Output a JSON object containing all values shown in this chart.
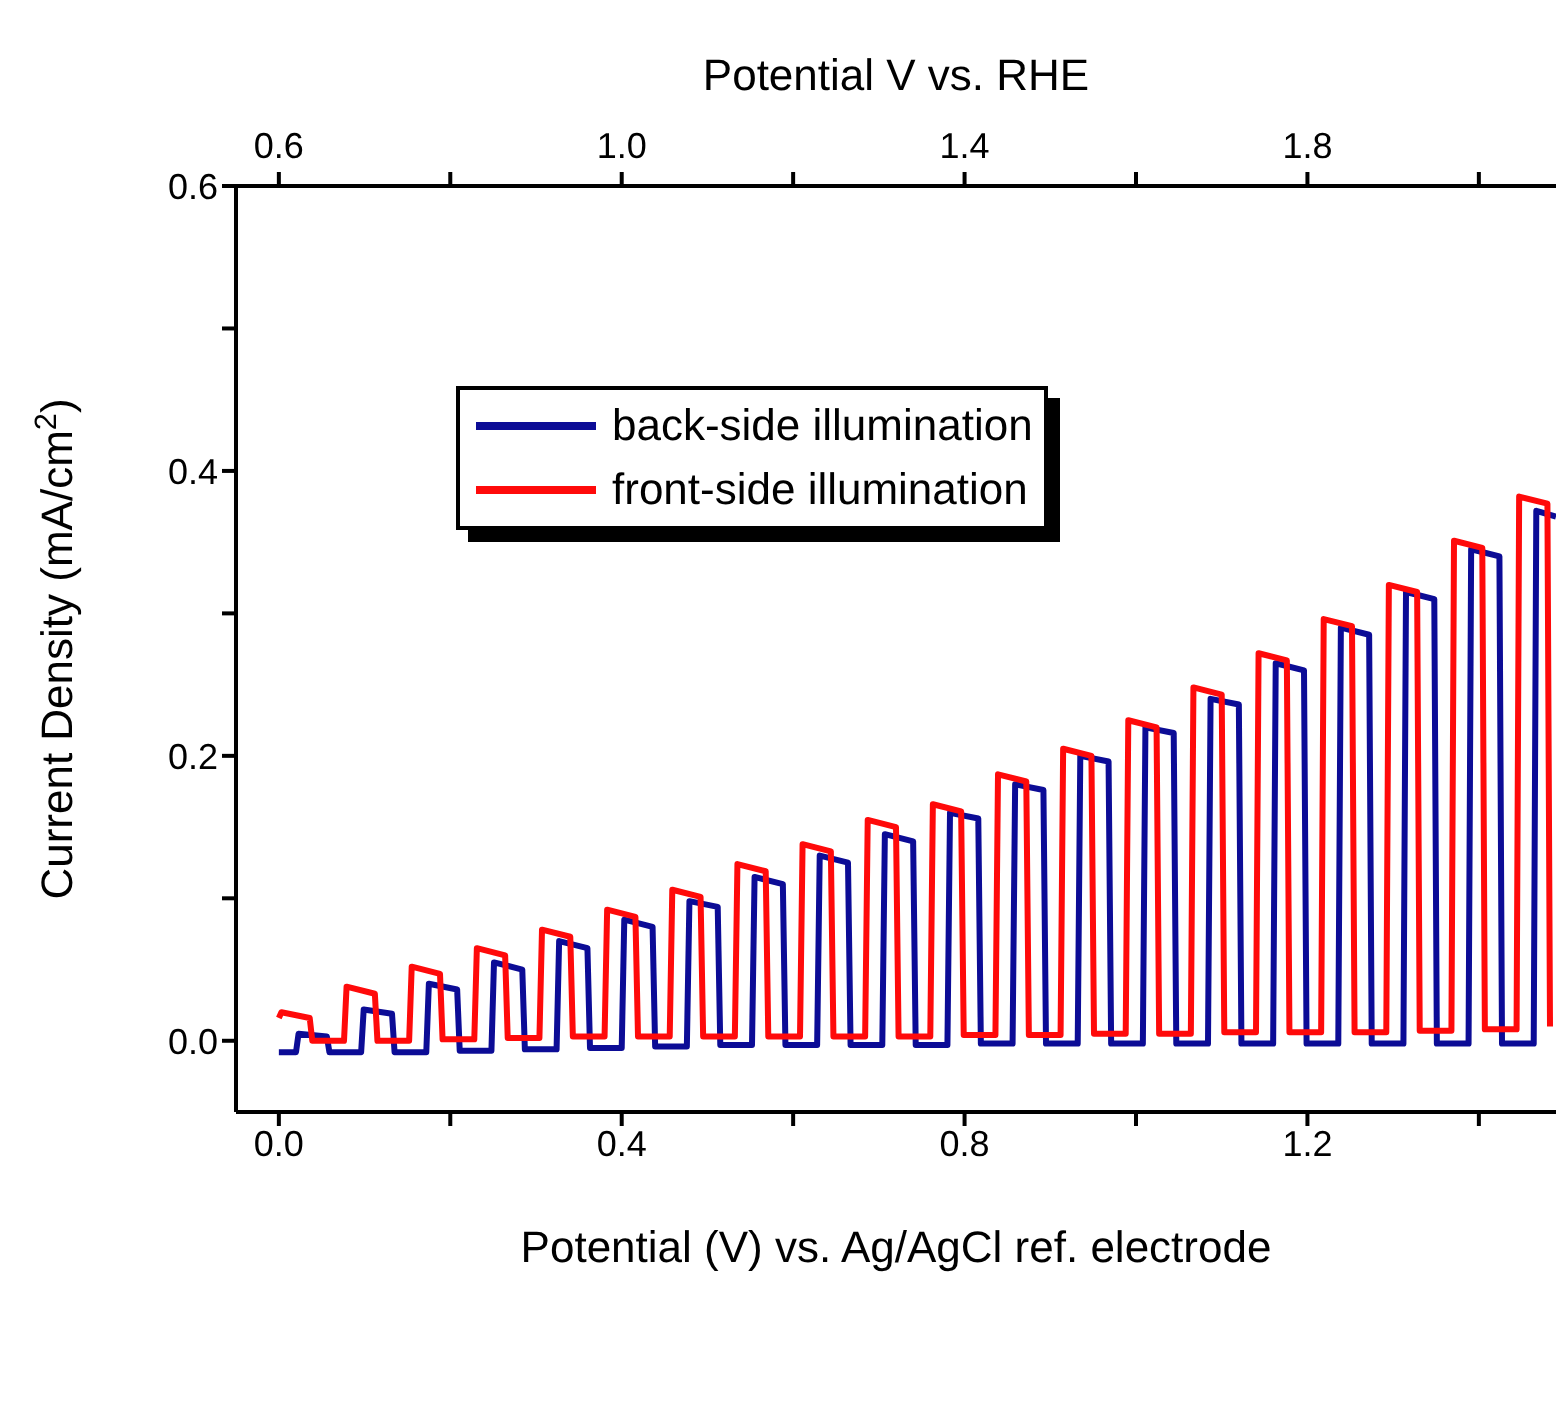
{
  "chart_data": {
    "type": "line",
    "xlabel": "Potential (V) vs. Ag/AgCl ref. electrode",
    "x2label": "Potential V vs. RHE",
    "ylabel": "Current Density (mA/cm$^{2}$)",
    "xlim": [
      -0.05,
      1.49
    ],
    "xticks": [
      {
        "value": 0,
        "label": "0.0"
      },
      {
        "value": 0.2,
        "label": null
      },
      {
        "value": 0.4,
        "label": "0.4"
      },
      {
        "value": 0.6,
        "label": null
      },
      {
        "value": 0.8,
        "label": "0.8"
      },
      {
        "value": 1.0,
        "label": null
      },
      {
        "value": 1.2,
        "label": "1.2"
      },
      {
        "value": 1.4,
        "label": null
      }
    ],
    "x2lim": [
      0.55,
      2.09
    ],
    "x2ticks": [
      0.6,
      {
        "value": 0.8,
        "label": null
      },
      {
        "value": 1.0,
        "label": "1.0"
      },
      {
        "value": 1.2,
        "label": null
      },
      1.4,
      {
        "value": 1.6,
        "label": null
      },
      1.8,
      {
        "value": 2.0,
        "label": null
      }
    ],
    "ylim": [
      -0.05,
      0.6
    ],
    "yticks": [
      {
        "value": 0,
        "label": "0.0"
      },
      {
        "value": 0.1,
        "label": null
      },
      0.2,
      {
        "value": 0.3,
        "label": null
      },
      0.4,
      {
        "value": 0.5,
        "label": null
      },
      0.6
    ],
    "legend": "top left",
    "marker": "none",
    "line_style": "solid",
    "series": [
      {
        "name": "back-side illumination",
        "color": "#0c0c96",
        "x": [
          0,
          0.02,
          0.023,
          0.056,
          0.059,
          0.096,
          0.099,
          0.132,
          0.135,
          0.172,
          0.175,
          0.208,
          0.211,
          0.248,
          0.251,
          0.284,
          0.287,
          0.324,
          0.327,
          0.36,
          0.363,
          0.4,
          0.403,
          0.436,
          0.439,
          0.476,
          0.479,
          0.512,
          0.515,
          0.552,
          0.555,
          0.588,
          0.591,
          0.628,
          0.631,
          0.664,
          0.667,
          0.704,
          0.707,
          0.74,
          0.743,
          0.78,
          0.783,
          0.816,
          0.819,
          0.856,
          0.859,
          0.892,
          0.895,
          0.932,
          0.935,
          0.968,
          0.971,
          1.008,
          1.011,
          1.044,
          1.047,
          1.084,
          1.087,
          1.12,
          1.123,
          1.16,
          1.163,
          1.196,
          1.199,
          1.236,
          1.239,
          1.272,
          1.275,
          1.312,
          1.315,
          1.348,
          1.351,
          1.388,
          1.391,
          1.424,
          1.427,
          1.464,
          1.467,
          1.49
        ],
        "values": [
          -0.008,
          -0.008,
          0.005,
          0.003,
          -0.008,
          -0.008,
          0.022,
          0.019,
          -0.008,
          -0.008,
          0.04,
          0.036,
          -0.007,
          -0.007,
          0.055,
          0.05,
          -0.006,
          -0.006,
          0.07,
          0.065,
          -0.005,
          -0.005,
          0.085,
          0.08,
          -0.004,
          -0.004,
          0.098,
          0.094,
          -0.003,
          -0.003,
          0.115,
          0.11,
          -0.003,
          -0.003,
          0.13,
          0.125,
          -0.003,
          -0.003,
          0.145,
          0.14,
          -0.003,
          -0.003,
          0.16,
          0.156,
          -0.002,
          -0.002,
          0.18,
          0.176,
          -0.002,
          -0.002,
          0.2,
          0.196,
          -0.002,
          -0.002,
          0.22,
          0.216,
          -0.002,
          -0.002,
          0.24,
          0.236,
          -0.002,
          -0.002,
          0.265,
          0.26,
          -0.002,
          -0.002,
          0.29,
          0.285,
          -0.002,
          -0.002,
          0.315,
          0.31,
          -0.002,
          -0.002,
          0.345,
          0.34,
          -0.002,
          -0.002,
          0.372,
          0.368
        ]
      },
      {
        "name": "front-side illumination",
        "color": "#ff0a0a",
        "x": [
          0,
          0.003,
          0.036,
          0.039,
          0.076,
          0.079,
          0.112,
          0.115,
          0.152,
          0.155,
          0.188,
          0.191,
          0.228,
          0.231,
          0.264,
          0.267,
          0.304,
          0.307,
          0.34,
          0.343,
          0.38,
          0.383,
          0.416,
          0.419,
          0.456,
          0.459,
          0.492,
          0.495,
          0.532,
          0.535,
          0.568,
          0.571,
          0.608,
          0.611,
          0.644,
          0.647,
          0.684,
          0.687,
          0.72,
          0.723,
          0.76,
          0.763,
          0.796,
          0.799,
          0.836,
          0.839,
          0.872,
          0.875,
          0.912,
          0.915,
          0.948,
          0.951,
          0.988,
          0.991,
          1.024,
          1.027,
          1.064,
          1.067,
          1.1,
          1.103,
          1.14,
          1.143,
          1.176,
          1.179,
          1.216,
          1.219,
          1.252,
          1.255,
          1.292,
          1.295,
          1.328,
          1.331,
          1.368,
          1.371,
          1.404,
          1.407,
          1.444,
          1.447,
          1.48,
          1.483
        ],
        "values": [
          0.016,
          0.02,
          0.016,
          0.0,
          0.0,
          0.038,
          0.033,
          0.0,
          0.0,
          0.052,
          0.047,
          0.001,
          0.001,
          0.065,
          0.06,
          0.002,
          0.002,
          0.078,
          0.073,
          0.003,
          0.003,
          0.092,
          0.087,
          0.003,
          0.003,
          0.106,
          0.101,
          0.003,
          0.003,
          0.124,
          0.119,
          0.003,
          0.003,
          0.138,
          0.133,
          0.003,
          0.003,
          0.155,
          0.15,
          0.003,
          0.003,
          0.166,
          0.161,
          0.004,
          0.004,
          0.187,
          0.182,
          0.004,
          0.004,
          0.205,
          0.2,
          0.005,
          0.005,
          0.225,
          0.22,
          0.005,
          0.005,
          0.248,
          0.243,
          0.006,
          0.006,
          0.272,
          0.267,
          0.006,
          0.006,
          0.296,
          0.291,
          0.006,
          0.006,
          0.32,
          0.315,
          0.007,
          0.007,
          0.351,
          0.346,
          0.008,
          0.008,
          0.382,
          0.377,
          0.01
        ]
      }
    ]
  }
}
